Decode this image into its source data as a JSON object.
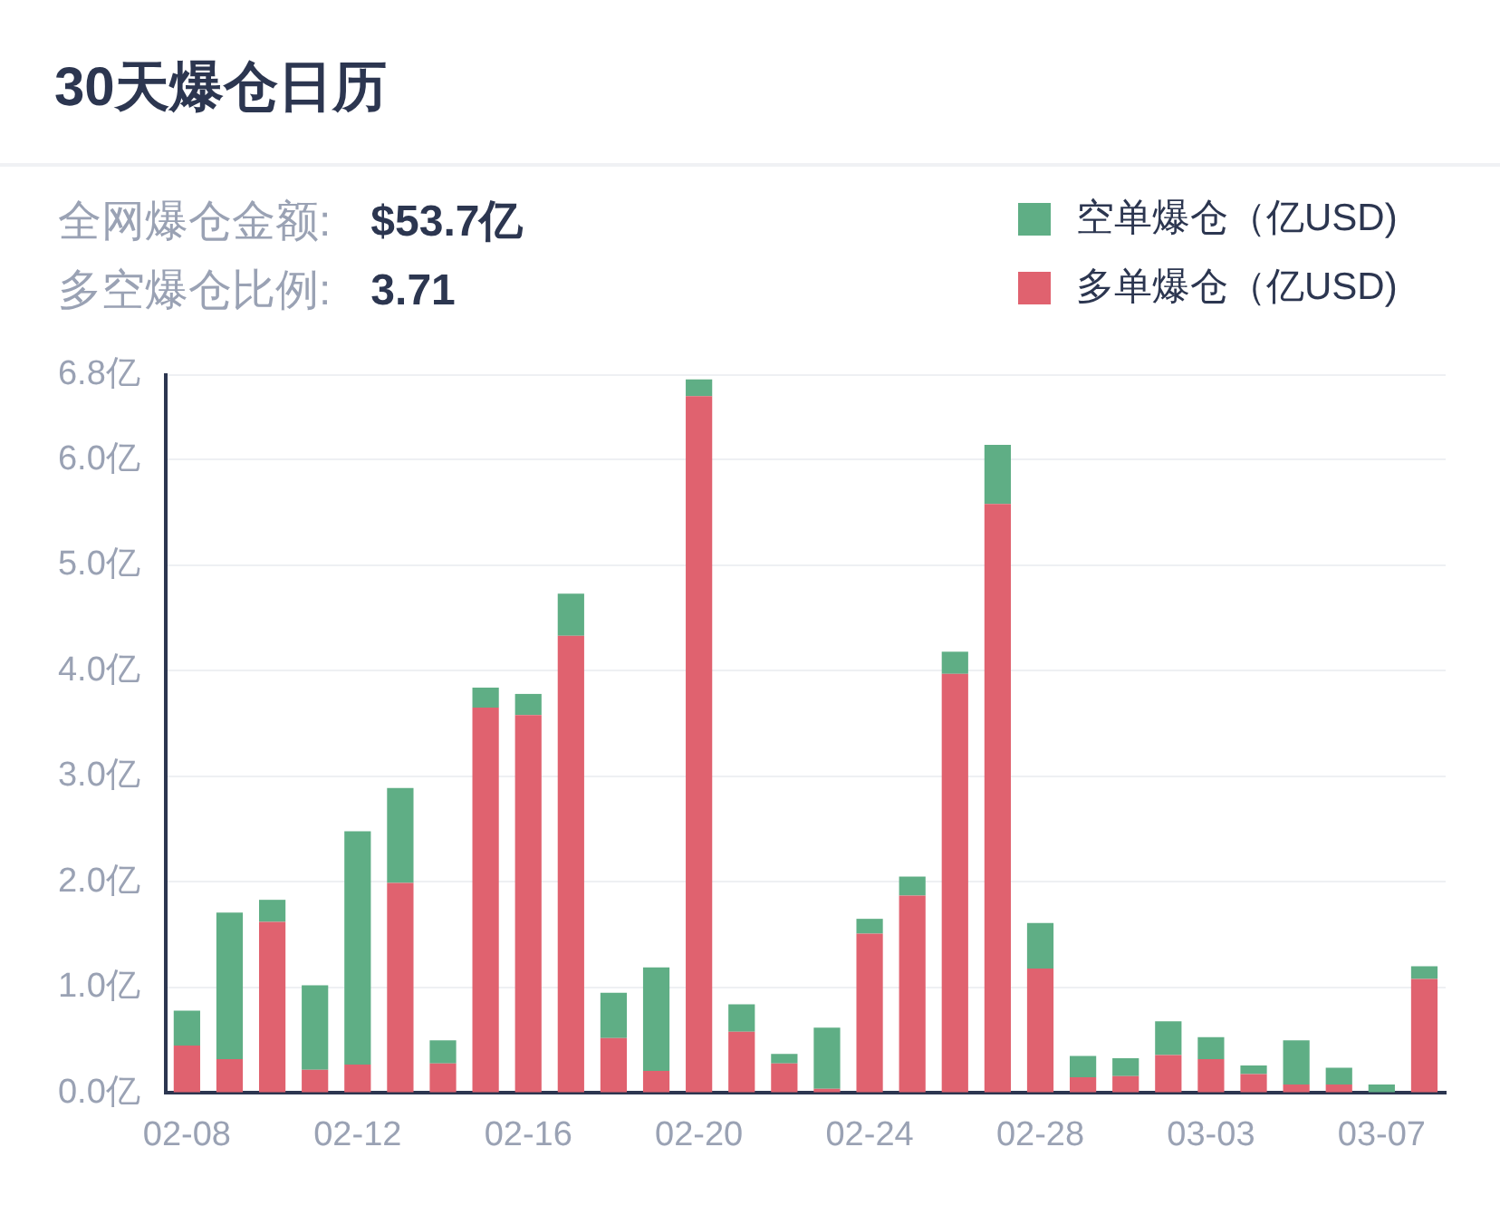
{
  "chart_data": {
    "type": "bar",
    "title": "30天爆仓日历",
    "annotations": [
      "全网爆仓金额:",
      "$53.7亿",
      "多空爆仓比例:",
      "3.71"
    ],
    "categories": [
      "02-08",
      null,
      null,
      null,
      "02-12",
      null,
      null,
      null,
      "02-16",
      null,
      null,
      null,
      "02-20",
      null,
      null,
      null,
      "02-24",
      null,
      null,
      null,
      "02-28",
      null,
      null,
      null,
      "03-03",
      null,
      null,
      null,
      "03-07",
      null
    ],
    "stacked": true,
    "series": [
      {
        "name": "多单爆仓（亿USD)",
        "color": "#e0626f",
        "values": [
          0.45,
          0.32,
          1.62,
          0.22,
          0.27,
          1.99,
          0.28,
          3.65,
          3.58,
          4.33,
          0.52,
          0.21,
          6.6,
          0.58,
          0.28,
          0.04,
          1.51,
          1.87,
          3.97,
          5.58,
          1.18,
          0.15,
          0.16,
          0.36,
          0.32,
          0.18,
          0.08,
          0.08,
          0.0,
          1.08
        ]
      },
      {
        "name": "空单爆仓（亿USD)",
        "color": "#5fae85",
        "values": [
          0.33,
          1.39,
          0.21,
          0.8,
          2.21,
          0.9,
          0.22,
          0.19,
          0.2,
          0.4,
          0.43,
          0.98,
          0.16,
          0.26,
          0.09,
          0.58,
          0.14,
          0.18,
          0.21,
          0.56,
          0.43,
          0.2,
          0.17,
          0.32,
          0.21,
          0.08,
          0.42,
          0.16,
          0.08,
          0.12
        ]
      }
    ],
    "ylim": [
      0,
      6.8
    ],
    "yticks": [
      {
        "value": 0,
        "label": "0.0亿"
      },
      {
        "value": 1,
        "label": "1.0亿"
      },
      {
        "value": 2,
        "label": "2.0亿"
      },
      {
        "value": 3,
        "label": "3.0亿"
      },
      {
        "value": 4,
        "label": "4.0亿"
      },
      {
        "value": 5,
        "label": "5.0亿"
      },
      {
        "value": 6,
        "label": "6.0亿"
      },
      {
        "value": 6.8,
        "label": "6.8亿"
      }
    ],
    "grid": "y",
    "legend": "top right"
  }
}
